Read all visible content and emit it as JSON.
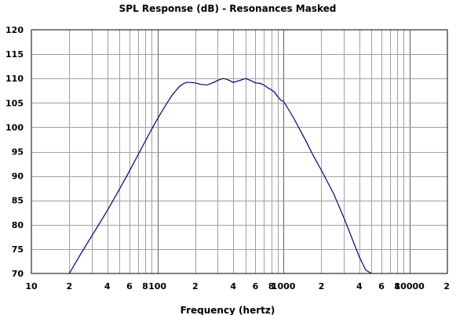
{
  "chart_data": {
    "type": "line",
    "title": "SPL Response (dB) - Resonances Masked",
    "xlabel": "Frequency (hertz)",
    "ylabel": "",
    "x_scale": "log",
    "xlim": [
      10,
      20000
    ],
    "ylim": [
      70,
      120
    ],
    "y_ticks": [
      70,
      75,
      80,
      85,
      90,
      95,
      100,
      105,
      110,
      115,
      120
    ],
    "x_tick_labels": [
      {
        "value": 10,
        "label": "10"
      },
      {
        "value": 20,
        "label": "2"
      },
      {
        "value": 40,
        "label": "4"
      },
      {
        "value": 60,
        "label": "6"
      },
      {
        "value": 80,
        "label": "8"
      },
      {
        "value": 100,
        "label": "100"
      },
      {
        "value": 200,
        "label": "2"
      },
      {
        "value": 400,
        "label": "4"
      },
      {
        "value": 600,
        "label": "6"
      },
      {
        "value": 800,
        "label": "8"
      },
      {
        "value": 1000,
        "label": "1000"
      },
      {
        "value": 2000,
        "label": "2"
      },
      {
        "value": 4000,
        "label": "4"
      },
      {
        "value": 6000,
        "label": "6"
      },
      {
        "value": 8000,
        "label": "8"
      },
      {
        "value": 10000,
        "label": "10000"
      },
      {
        "value": 20000,
        "label": "2"
      }
    ],
    "grid": true,
    "line_color": "#000080",
    "grid_color": "#a0a0a0",
    "series": [
      {
        "x": [
          20,
          25,
          30,
          40,
          50,
          60,
          70,
          80,
          90,
          100,
          110,
          120,
          130,
          140,
          150,
          160,
          170,
          180,
          200,
          220,
          250,
          280,
          300,
          330,
          350,
          380,
          400,
          450,
          500,
          550,
          600,
          650,
          700,
          750,
          800,
          850,
          900,
          950,
          1000,
          1050,
          1100,
          1200,
          1300,
          1500,
          1700,
          2000,
          2500,
          3000,
          3500,
          4000,
          4500,
          5000
        ],
        "y": [
          70,
          74.3,
          77.6,
          82.9,
          87.3,
          91.0,
          94.3,
          97.1,
          99.6,
          101.7,
          103.5,
          105.1,
          106.5,
          107.5,
          108.4,
          108.9,
          109.2,
          109.2,
          109.1,
          108.8,
          108.7,
          109.2,
          109.6,
          110.0,
          109.9,
          109.5,
          109.2,
          109.6,
          110.0,
          109.6,
          109.1,
          109.0,
          108.7,
          108.1,
          107.7,
          107.2,
          106.3,
          105.6,
          105.3,
          104.5,
          103.6,
          102.0,
          100.3,
          97.3,
          94.5,
          91.2,
          86.4,
          81.6,
          77.2,
          73.4,
          70.7,
          70
        ]
      }
    ]
  }
}
